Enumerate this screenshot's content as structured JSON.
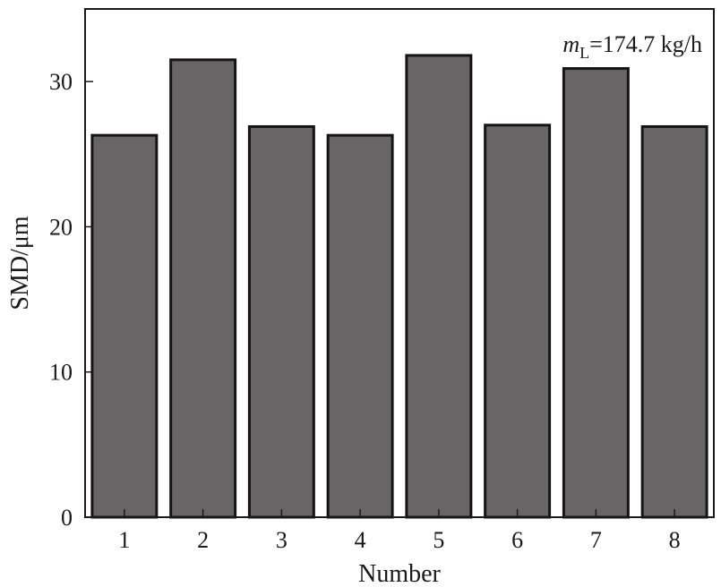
{
  "chart_data": {
    "type": "bar",
    "categories": [
      "1",
      "2",
      "3",
      "4",
      "5",
      "6",
      "7",
      "8"
    ],
    "values": [
      26.3,
      31.5,
      26.9,
      26.3,
      31.8,
      27.0,
      30.9,
      26.9
    ],
    "title": "",
    "xlabel": "Number",
    "ylabel": "SMD/μm",
    "ylim": [
      0,
      35
    ],
    "yticks": [
      0,
      10,
      20,
      30
    ],
    "grid": false,
    "annotation": {
      "symbol": "m",
      "subscript": "L",
      "text": "=174.7 kg/h"
    },
    "colors": {
      "bar_fill": "#676566",
      "bar_stroke": "#141414",
      "axis": "#1a1a1a"
    }
  }
}
